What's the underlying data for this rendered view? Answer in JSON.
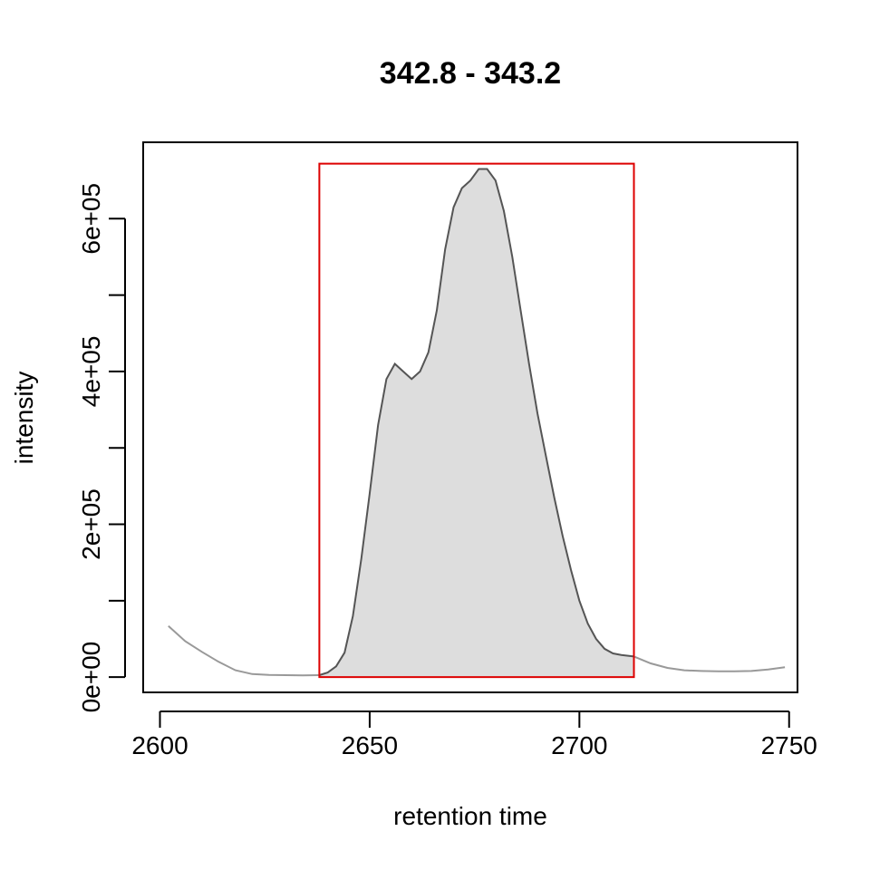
{
  "chart_data": {
    "type": "line",
    "title": "342.8 - 343.2",
    "xlabel": "retention time",
    "ylabel": "intensity",
    "xlim": [
      2596,
      2752
    ],
    "ylim": [
      -20000,
      700000
    ],
    "x_ticks": [
      2600,
      2650,
      2700,
      2750
    ],
    "x_tick_labels": [
      "2600",
      "2650",
      "2700",
      "2750"
    ],
    "y_ticks": [
      0,
      100000,
      200000,
      300000,
      400000,
      500000,
      600000
    ],
    "y_tick_labels": [
      "0e+00",
      "",
      "2e+05",
      "",
      "4e+05",
      "",
      "6e+05"
    ],
    "grid": false,
    "colors": {
      "context_line": "#999999",
      "peak_line": "#555555",
      "peak_fill": "#dddddd",
      "integration_box": "#dd0000"
    },
    "integration_range": {
      "rt_start": 2638,
      "rt_end": 2713,
      "intensity_min": 0,
      "intensity_max": 672000
    },
    "series": [
      {
        "role": "context",
        "x": [
          2602,
          2606,
          2610,
          2614,
          2618,
          2622,
          2626,
          2630,
          2634,
          2638,
          2713,
          2717,
          2721,
          2725,
          2729,
          2733,
          2737,
          2741,
          2745,
          2749
        ],
        "y": [
          67000,
          47000,
          33000,
          20000,
          9000,
          4000,
          2800,
          2500,
          2300,
          2500,
          27000,
          18000,
          12000,
          9000,
          8000,
          7500,
          7500,
          8000,
          10000,
          13000
        ]
      },
      {
        "role": "peak",
        "x": [
          2638,
          2640,
          2642,
          2644,
          2646,
          2648,
          2650,
          2652,
          2654,
          2656,
          2658,
          2660,
          2662,
          2664,
          2666,
          2668,
          2670,
          2672,
          2674,
          2676,
          2678,
          2680,
          2682,
          2684,
          2686,
          2688,
          2690,
          2692,
          2694,
          2696,
          2698,
          2700,
          2702,
          2704,
          2706,
          2708,
          2710,
          2713
        ],
        "y": [
          2500,
          6000,
          14000,
          32000,
          80000,
          155000,
          240000,
          330000,
          390000,
          410000,
          400000,
          390000,
          400000,
          425000,
          480000,
          560000,
          615000,
          640000,
          650000,
          665000,
          665000,
          650000,
          610000,
          550000,
          480000,
          410000,
          345000,
          290000,
          235000,
          185000,
          140000,
          100000,
          70000,
          50000,
          37000,
          31000,
          29000,
          27000
        ]
      }
    ]
  }
}
